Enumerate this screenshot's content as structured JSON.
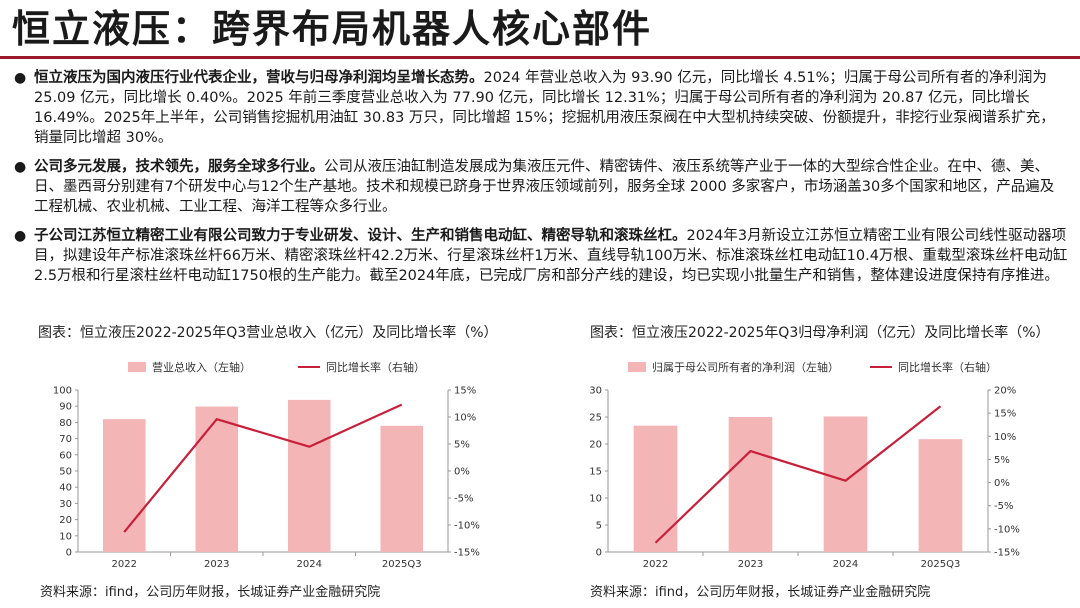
{
  "header": {
    "title": "恒立液压：跨界布局机器人核心部件"
  },
  "bullets": [
    {
      "dot": "●",
      "lead": "恒立液压为国内液压行业代表企业，营收与归母净利润均呈增长态势。",
      "body": "2024 年营业总收入为 93.90 亿元，同比增长 4.51%；归属于母公司所有者的净利润为 25.09 亿元，同比增长 0.40%。2025 年前三季度营业总收入为 77.90 亿元，同比增长 12.31%；归属于母公司所有者的净利润为 20.87 亿元，同比增长 16.49%。2025年上半年，公司销售挖掘机用油缸 30.83 万只，同比增超 15%；挖掘机用液压泵阀在中大型机持续突破、份额提升，非挖行业泵阀谱系扩充，销量同比增超 30%。"
    },
    {
      "dot": "●",
      "lead": "公司多元发展，技术领先，服务全球多行业。",
      "body": "公司从液压油缸制造发展成为集液压元件、精密铸件、液压系统等产业于一体的大型综合性企业。在中、德、美、日、墨西哥分别建有7个研发中心与12个生产基地。技术和规模已跻身于世界液压领域前列，服务全球 2000 多家客户，市场涵盖30多个国家和地区，产品遍及工程机械、农业机械、工业工程、海洋工程等众多行业。"
    },
    {
      "dot": "●",
      "lead": "子公司江苏恒立精密工业有限公司致力于专业研发、设计、生产和销售电动缸、精密导轨和滚珠丝杠。",
      "body": "2024年3月新设立江苏恒立精密工业有限公司线性驱动器项目，拟建设年产标准滚珠丝杆66万米、精密滚珠丝杆42.2万米、行星滚珠丝杆1万米、直线导轨100万米、标准滚珠丝杠电动缸10.4万根、重载型滚珠丝杆电动缸2.5万根和行星滚柱丝杆电动缸1750根的生产能力。截至2024年底，已完成厂房和部分产线的建设，均已实现小批量生产和销售，整体建设进度保持有序推进。"
    }
  ],
  "chart_data": [
    {
      "type": "bar",
      "caption": "图表：恒立液压2022-2025年Q3营业总收入（亿元）及同比增长率（%）",
      "categories": [
        "2022",
        "2023",
        "2024",
        "2025Q3"
      ],
      "series": [
        {
          "name": "营业总收入（左轴）",
          "type": "bar",
          "axis": "left",
          "values": [
            82.0,
            89.8,
            93.9,
            77.9
          ],
          "color": "#f4b5b7"
        },
        {
          "name": "同比增长率（右轴）",
          "type": "line",
          "axis": "right",
          "values": [
            -11.3,
            9.6,
            4.5,
            12.3
          ],
          "color": "#c8203a"
        }
      ],
      "y_left": {
        "min": 0,
        "max": 100,
        "step": 10,
        "ticks": [
          "0",
          "10",
          "20",
          "30",
          "40",
          "50",
          "60",
          "70",
          "80",
          "90",
          "100"
        ]
      },
      "y_right": {
        "min": -15,
        "max": 15,
        "step": 5,
        "ticks": [
          "-15%",
          "-10%",
          "-5%",
          "0%",
          "5%",
          "10%",
          "15%"
        ]
      },
      "legend": "top",
      "grid": false,
      "source": "资料来源：ifind，公司历年财报，长城证券产业金融研究院"
    },
    {
      "type": "bar",
      "caption": "图表：恒立液压2022-2025年Q3归母净利润（亿元）及同比增长率（%）",
      "categories": [
        "2022",
        "2023",
        "2024",
        "2025Q3"
      ],
      "series": [
        {
          "name": "归属于母公司所有者的净利润（左轴）",
          "type": "bar",
          "axis": "left",
          "values": [
            23.4,
            25.0,
            25.1,
            20.9
          ],
          "color": "#f4b5b7"
        },
        {
          "name": "同比增长率（右轴）",
          "type": "line",
          "axis": "right",
          "values": [
            -13.0,
            6.8,
            0.4,
            16.5
          ],
          "color": "#c8203a"
        }
      ],
      "y_left": {
        "min": 0,
        "max": 30,
        "step": 5,
        "ticks": [
          "0",
          "5",
          "10",
          "15",
          "20",
          "25",
          "30"
        ]
      },
      "y_right": {
        "min": -15,
        "max": 20,
        "step": 5,
        "ticks": [
          "-15%",
          "-10%",
          "-5%",
          "0%",
          "5%",
          "10%",
          "15%",
          "20%"
        ]
      },
      "legend": "top",
      "grid": false,
      "source": "资料来源：ifind，公司历年财报，长城证券产业金融研究院"
    }
  ]
}
